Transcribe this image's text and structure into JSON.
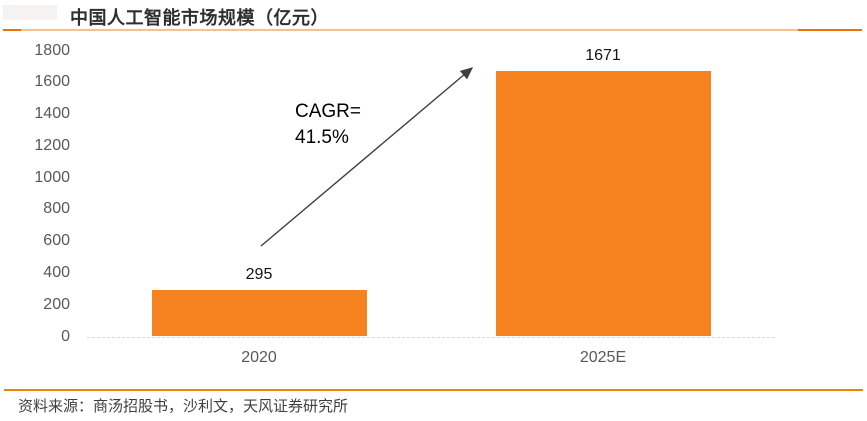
{
  "title": "中国人工智能市场规模（亿元）",
  "source_note": "资料来源：商汤招股书，沙利文，天风证券研究所",
  "annotation": {
    "line1": "CAGR=",
    "line2": "41.5%"
  },
  "colors": {
    "bar": "#F5821F",
    "rule_light": "#F8C08C",
    "rule_dark": "#ED7009",
    "bottom_rule": "#F08300",
    "axis_line": "#D8D8D8",
    "tick_text": "#595959",
    "category_text": "#595959",
    "title_text": "#2E2E2E",
    "value_text": "#141414",
    "annotation_text": "#000000",
    "arrow": "#3F3F3F",
    "source_text": "#3F3F3F"
  },
  "chart_data": {
    "type": "bar",
    "title": "中国人工智能市场规模（亿元）",
    "unit": "亿元",
    "categories": [
      "2020",
      "2025E"
    ],
    "values": [
      295,
      1671
    ],
    "value_labels": [
      "295",
      "1671"
    ],
    "ylim": [
      0,
      1800
    ],
    "ytick_step": 200,
    "grid": false,
    "legend": "none",
    "annotation": "CAGR= 41.5%"
  }
}
